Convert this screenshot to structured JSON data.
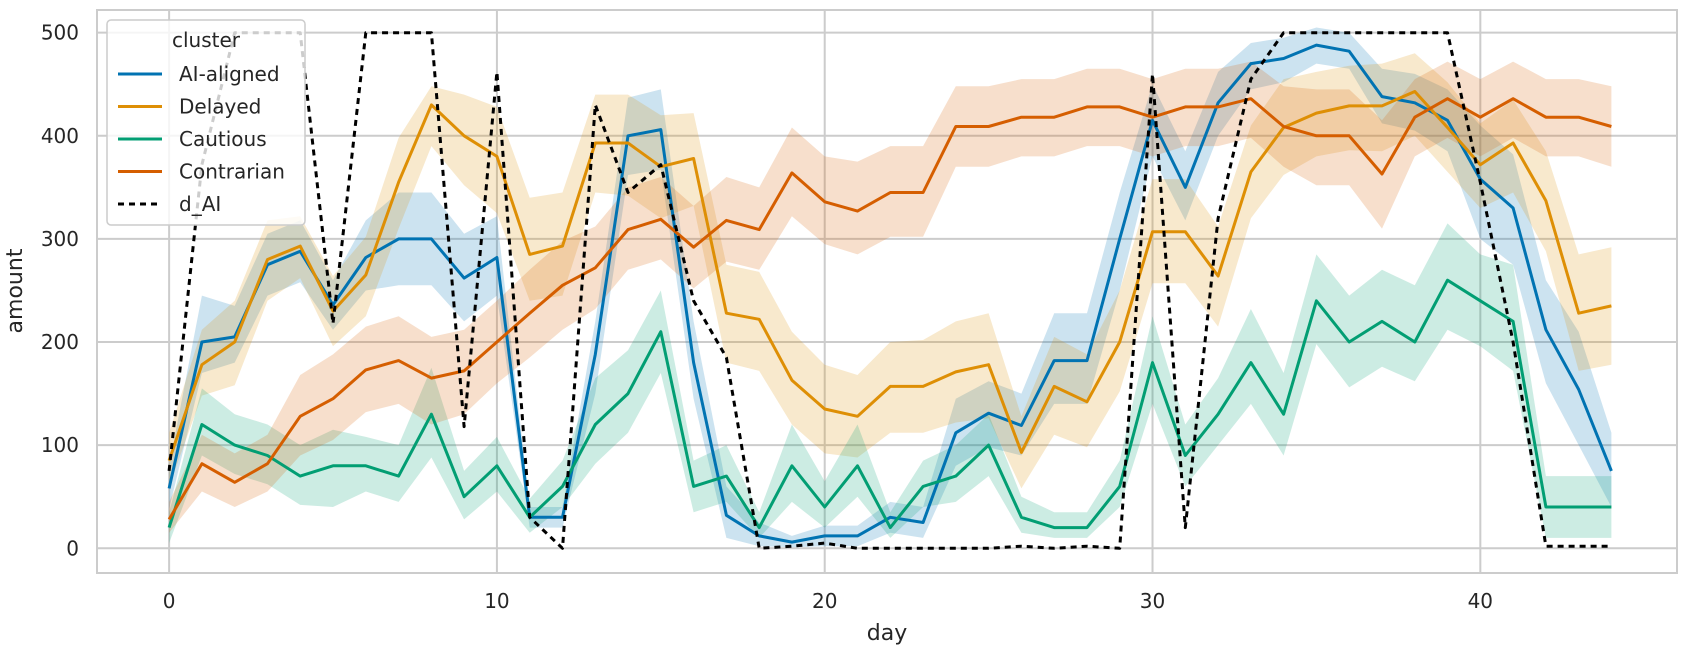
{
  "chart_data": {
    "type": "line",
    "xlabel": "day",
    "ylabel": "amount",
    "xlim": [
      -2.2,
      46.0
    ],
    "ylim": [
      -24,
      522
    ],
    "xticks": [
      0,
      10,
      20,
      30,
      40
    ],
    "yticks": [
      0,
      100,
      200,
      300,
      400,
      500
    ],
    "grid": true,
    "legend": {
      "title": "cluster",
      "placement": "top-left"
    },
    "series": [
      {
        "name": "AI-aligned",
        "color": "#0173b2",
        "style": "solid",
        "band": true,
        "x": [
          0,
          1,
          2,
          3,
          4,
          5,
          6,
          7,
          8,
          9,
          10,
          11,
          12,
          13,
          14,
          15,
          16,
          17,
          18,
          19,
          20,
          21,
          22,
          23,
          24,
          25,
          26,
          27,
          28,
          29,
          30,
          31,
          32,
          33,
          34,
          35,
          36,
          37,
          38,
          39,
          40,
          41,
          42,
          43,
          44
        ],
        "values": [
          58,
          200,
          205,
          275,
          288,
          236,
          282,
          300,
          300,
          262,
          282,
          30,
          30,
          188,
          400,
          406,
          180,
          32,
          12,
          6,
          12,
          12,
          30,
          25,
          112,
          131,
          119,
          182,
          182,
          300,
          415,
          350,
          432,
          470,
          475,
          488,
          482,
          438,
          432,
          415,
          358,
          330,
          212,
          154,
          75
        ],
        "lower": [
          38,
          170,
          180,
          245,
          258,
          212,
          250,
          255,
          255,
          220,
          245,
          20,
          20,
          150,
          362,
          367,
          145,
          10,
          2,
          1,
          2,
          2,
          15,
          10,
          80,
          98,
          90,
          140,
          140,
          250,
          380,
          318,
          400,
          445,
          452,
          470,
          465,
          412,
          405,
          385,
          300,
          275,
          160,
          100,
          40
        ],
        "upper": [
          80,
          245,
          235,
          305,
          318,
          260,
          318,
          345,
          345,
          305,
          322,
          40,
          40,
          220,
          437,
          445,
          220,
          60,
          25,
          12,
          22,
          22,
          45,
          40,
          145,
          162,
          150,
          228,
          228,
          345,
          450,
          385,
          462,
          490,
          495,
          505,
          500,
          465,
          460,
          445,
          410,
          382,
          260,
          210,
          112
        ]
      },
      {
        "name": "Delayed",
        "color": "#de8f05",
        "style": "solid",
        "band": true,
        "x": [
          0,
          1,
          2,
          3,
          4,
          5,
          6,
          7,
          8,
          9,
          10,
          11,
          12,
          13,
          14,
          15,
          16,
          17,
          18,
          19,
          20,
          21,
          22,
          23,
          24,
          25,
          26,
          27,
          28,
          29,
          30,
          31,
          32,
          33,
          34,
          35,
          36,
          37,
          38,
          39,
          40,
          41,
          42,
          43,
          44
        ],
        "values": [
          85,
          178,
          200,
          280,
          293,
          230,
          265,
          355,
          430,
          400,
          380,
          285,
          293,
          393,
          393,
          370,
          378,
          228,
          222,
          163,
          135,
          128,
          157,
          157,
          171,
          178,
          93,
          157,
          142,
          200,
          307,
          307,
          264,
          365,
          408,
          422,
          429,
          429,
          443,
          408,
          372,
          393,
          337,
          228,
          235
        ],
        "lower": [
          60,
          148,
          158,
          240,
          262,
          196,
          225,
          310,
          390,
          352,
          325,
          240,
          245,
          345,
          342,
          320,
          332,
          180,
          172,
          120,
          92,
          88,
          112,
          112,
          122,
          126,
          58,
          110,
          98,
          152,
          257,
          257,
          215,
          320,
          362,
          380,
          386,
          385,
          400,
          365,
          330,
          345,
          288,
          172,
          178
        ],
        "upper": [
          112,
          212,
          240,
          318,
          322,
          264,
          302,
          398,
          448,
          440,
          428,
          340,
          345,
          440,
          440,
          420,
          422,
          275,
          268,
          210,
          178,
          168,
          200,
          202,
          220,
          228,
          128,
          205,
          188,
          250,
          358,
          358,
          312,
          410,
          455,
          462,
          468,
          470,
          480,
          452,
          412,
          435,
          385,
          285,
          292
        ]
      },
      {
        "name": "Cautious",
        "color": "#029e73",
        "style": "solid",
        "band": true,
        "x": [
          0,
          1,
          2,
          3,
          4,
          5,
          6,
          7,
          8,
          9,
          10,
          11,
          12,
          13,
          14,
          15,
          16,
          17,
          18,
          19,
          20,
          21,
          22,
          23,
          24,
          25,
          26,
          27,
          28,
          29,
          30,
          31,
          32,
          33,
          34,
          35,
          36,
          37,
          38,
          39,
          40,
          41,
          42,
          43,
          44
        ],
        "values": [
          20,
          120,
          100,
          90,
          70,
          80,
          80,
          70,
          130,
          50,
          80,
          30,
          60,
          120,
          150,
          210,
          60,
          70,
          20,
          80,
          40,
          80,
          20,
          60,
          70,
          100,
          30,
          20,
          20,
          60,
          180,
          90,
          130,
          180,
          130,
          240,
          200,
          220,
          200,
          260,
          240,
          220,
          40,
          40,
          40
        ],
        "lower": [
          5,
          90,
          72,
          62,
          42,
          40,
          55,
          45,
          88,
          28,
          55,
          15,
          40,
          82,
          112,
          170,
          35,
          45,
          10,
          45,
          20,
          50,
          10,
          40,
          45,
          70,
          15,
          10,
          10,
          40,
          140,
          60,
          100,
          140,
          90,
          198,
          156,
          176,
          162,
          212,
          196,
          172,
          10,
          10,
          10
        ],
        "upper": [
          35,
          155,
          130,
          120,
          100,
          115,
          108,
          100,
          175,
          75,
          108,
          48,
          85,
          165,
          192,
          250,
          85,
          100,
          35,
          120,
          65,
          120,
          35,
          85,
          100,
          130,
          50,
          35,
          35,
          85,
          225,
          120,
          165,
          232,
          170,
          285,
          245,
          270,
          255,
          315,
          285,
          275,
          70,
          70,
          70
        ]
      },
      {
        "name": "Contrarian",
        "color": "#d55e00",
        "style": "solid",
        "band": true,
        "x": [
          0,
          1,
          2,
          3,
          4,
          5,
          6,
          7,
          8,
          9,
          10,
          11,
          12,
          13,
          14,
          15,
          16,
          17,
          18,
          19,
          20,
          21,
          22,
          23,
          24,
          25,
          26,
          27,
          28,
          29,
          30,
          31,
          32,
          33,
          34,
          35,
          36,
          37,
          38,
          39,
          40,
          41,
          42,
          43,
          44
        ],
        "values": [
          28,
          82,
          64,
          82,
          128,
          145,
          173,
          182,
          165,
          172,
          200,
          228,
          255,
          272,
          309,
          319,
          292,
          318,
          309,
          364,
          336,
          327,
          345,
          345,
          409,
          409,
          418,
          418,
          428,
          428,
          418,
          428,
          428,
          436,
          409,
          400,
          400,
          363,
          418,
          436,
          418,
          436,
          418,
          418,
          409
        ],
        "lower": [
          15,
          55,
          40,
          55,
          90,
          105,
          132,
          140,
          120,
          130,
          160,
          185,
          212,
          232,
          270,
          280,
          252,
          278,
          270,
          322,
          295,
          285,
          302,
          302,
          370,
          370,
          380,
          380,
          390,
          390,
          380,
          390,
          390,
          398,
          370,
          352,
          352,
          310,
          380,
          398,
          380,
          398,
          380,
          380,
          370
        ],
        "upper": [
          45,
          110,
          92,
          110,
          168,
          188,
          215,
          225,
          205,
          212,
          240,
          270,
          298,
          312,
          350,
          360,
          332,
          360,
          350,
          408,
          380,
          375,
          390,
          390,
          448,
          448,
          455,
          455,
          465,
          465,
          455,
          465,
          465,
          472,
          448,
          445,
          445,
          415,
          455,
          472,
          455,
          472,
          455,
          455,
          448
        ]
      },
      {
        "name": "d_AI",
        "color": "#000000",
        "style": "dashed",
        "band": false,
        "x": [
          0,
          1,
          2,
          3,
          4,
          5,
          6,
          7,
          8,
          9,
          10,
          11,
          12,
          13,
          14,
          15,
          16,
          17,
          18,
          19,
          20,
          21,
          22,
          23,
          24,
          25,
          26,
          27,
          28,
          29,
          30,
          31,
          32,
          33,
          34,
          35,
          36,
          37,
          38,
          39,
          40,
          41,
          42,
          43,
          44
        ],
        "values": [
          75,
          372,
          500,
          500,
          500,
          218,
          500,
          500,
          500,
          118,
          462,
          30,
          0,
          430,
          345,
          372,
          240,
          185,
          0,
          2,
          5,
          0,
          0,
          0,
          0,
          0,
          2,
          0,
          2,
          0,
          460,
          20,
          320,
          455,
          500,
          500,
          500,
          500,
          500,
          500,
          355,
          200,
          2,
          2,
          2
        ]
      }
    ]
  }
}
